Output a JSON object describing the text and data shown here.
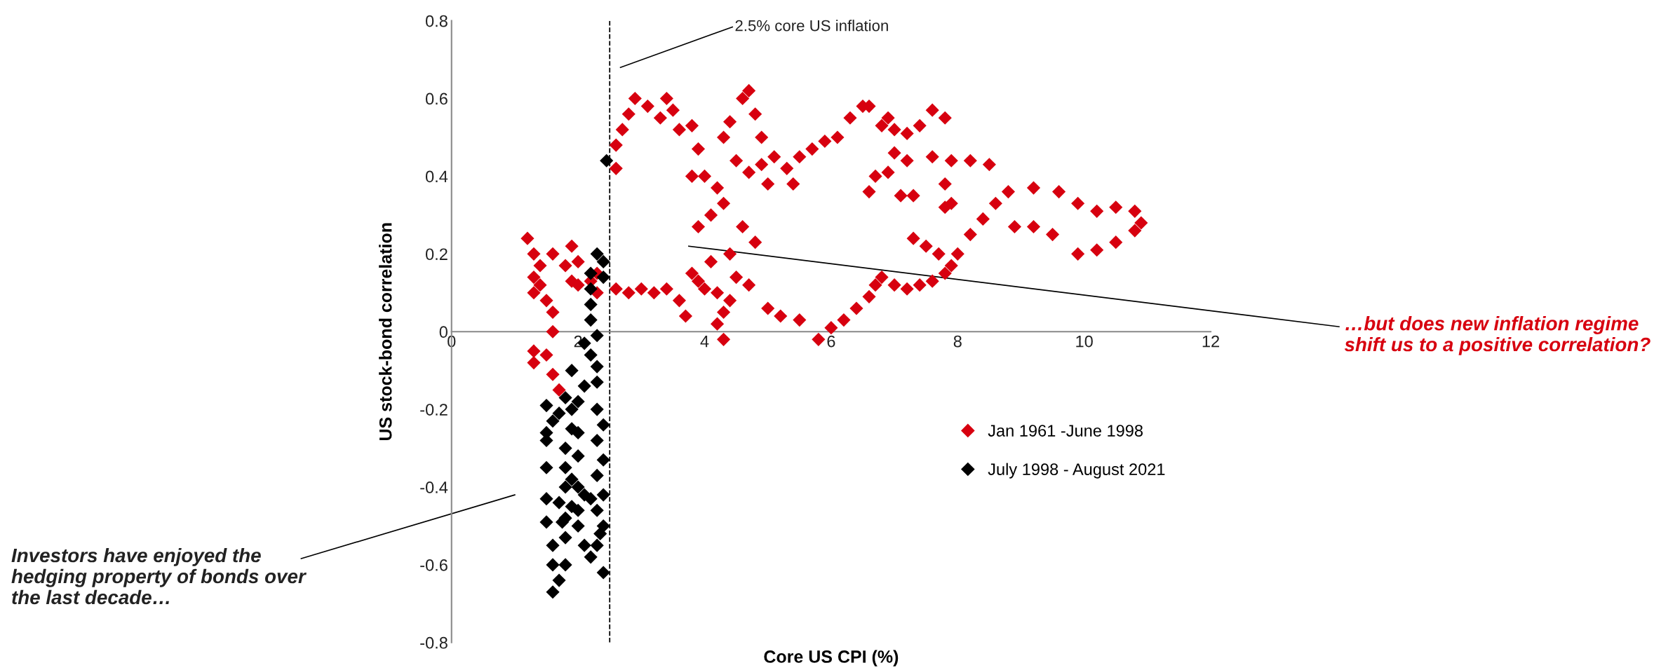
{
  "chart_data": {
    "type": "scatter",
    "xlabel": "Core US CPI (%)",
    "ylabel": "US stock-bond correlation",
    "xlim": [
      0,
      12
    ],
    "xticks": [
      0,
      2,
      4,
      6,
      8,
      10,
      12
    ],
    "ylim": [
      -0.8,
      0.8
    ],
    "yticks": [
      -0.8,
      -0.6,
      -0.4,
      -0.2,
      0,
      0.2,
      0.4,
      0.6,
      0.8
    ],
    "grid": false,
    "legend": "bottom right",
    "marker": "diamond",
    "ref_lines": [
      {
        "axis": "x",
        "value": 2.5,
        "color": "#000000",
        "line_style": "dashed"
      }
    ],
    "annotations": [
      "2.5% core US inflation",
      "…but does new inflation regime shift us to a positive correlation?",
      "Investors have enjoyed the hedging property of bonds over the last decade…"
    ],
    "series": [
      {
        "name": "Jan 1961 -June 1998",
        "color": "#d7000f",
        "x": [
          1.2,
          1.3,
          1.4,
          1.3,
          1.4,
          1.3,
          1.5,
          1.6,
          1.6,
          1.3,
          1.3,
          1.5,
          1.6,
          1.7,
          1.8,
          1.9,
          2.0,
          2.2,
          2.3,
          1.6,
          1.9,
          2.0,
          2.3,
          2.6,
          2.8,
          3.0,
          3.2,
          3.4,
          3.6,
          3.8,
          3.9,
          4.0,
          4.2,
          4.3,
          4.2,
          4.3,
          4.4,
          4.5,
          4.1,
          3.7,
          4.7,
          5.0,
          5.2,
          5.5,
          5.8,
          6.0,
          6.2,
          6.4,
          6.6,
          6.7,
          6.8,
          7.0,
          7.2,
          7.4,
          7.6,
          7.8,
          7.9,
          8.0,
          8.2,
          8.4,
          8.6,
          8.8,
          9.2,
          9.6,
          9.9,
          10.2,
          10.5,
          10.8,
          10.9,
          10.8,
          10.5,
          10.2,
          9.9,
          9.5,
          9.2,
          8.9,
          7.7,
          7.5,
          7.3,
          7.8,
          2.6,
          2.6,
          2.7,
          2.8,
          2.9,
          3.1,
          3.3,
          3.4,
          3.5,
          3.6,
          3.8,
          3.9,
          3.8,
          4.0,
          4.2,
          4.3,
          4.1,
          3.9,
          4.3,
          4.4,
          4.6,
          4.7,
          4.8,
          4.9,
          4.5,
          4.7,
          4.9,
          5.1,
          5.3,
          5.5,
          5.7,
          5.9,
          6.1,
          6.3,
          6.5,
          6.6,
          6.8,
          7.0,
          7.2,
          7.4,
          7.6,
          7.8,
          6.9,
          7.6,
          7.9,
          8.2,
          8.5,
          7.8,
          7.9,
          7.0,
          7.2,
          6.7,
          6.9,
          7.1,
          7.3,
          6.6,
          5.4,
          5.0,
          4.6,
          4.8,
          4.4
        ],
        "values": [
          0.24,
          0.2,
          0.17,
          0.14,
          0.12,
          0.1,
          0.08,
          0.05,
          0.0,
          -0.05,
          -0.08,
          -0.06,
          -0.11,
          -0.15,
          0.17,
          0.13,
          0.18,
          0.13,
          0.1,
          0.2,
          0.22,
          0.12,
          0.15,
          0.11,
          0.1,
          0.11,
          0.1,
          0.11,
          0.08,
          0.15,
          0.13,
          0.11,
          0.1,
          0.05,
          0.02,
          -0.02,
          0.08,
          0.14,
          0.18,
          0.04,
          0.12,
          0.06,
          0.04,
          0.03,
          -0.02,
          0.01,
          0.03,
          0.06,
          0.09,
          0.12,
          0.14,
          0.12,
          0.11,
          0.12,
          0.13,
          0.15,
          0.17,
          0.2,
          0.25,
          0.29,
          0.33,
          0.36,
          0.37,
          0.36,
          0.33,
          0.31,
          0.32,
          0.31,
          0.28,
          0.26,
          0.23,
          0.21,
          0.2,
          0.25,
          0.27,
          0.27,
          0.2,
          0.22,
          0.24,
          0.32,
          0.42,
          0.48,
          0.52,
          0.56,
          0.6,
          0.58,
          0.55,
          0.6,
          0.57,
          0.52,
          0.53,
          0.47,
          0.4,
          0.4,
          0.37,
          0.33,
          0.3,
          0.27,
          0.5,
          0.54,
          0.6,
          0.62,
          0.56,
          0.5,
          0.44,
          0.41,
          0.43,
          0.45,
          0.42,
          0.45,
          0.47,
          0.49,
          0.5,
          0.55,
          0.58,
          0.58,
          0.53,
          0.52,
          0.51,
          0.53,
          0.57,
          0.55,
          0.55,
          0.45,
          0.44,
          0.44,
          0.43,
          0.38,
          0.33,
          0.46,
          0.44,
          0.4,
          0.41,
          0.35,
          0.35,
          0.36,
          0.38,
          0.38,
          0.27,
          0.23,
          0.2
        ]
      },
      {
        "name": "July 1998 - August 2021",
        "color": "#000000",
        "x": [
          2.45,
          2.3,
          2.4,
          2.2,
          2.4,
          2.2,
          2.2,
          2.2,
          2.3,
          2.1,
          2.2,
          2.3,
          2.3,
          2.1,
          1.9,
          1.8,
          1.5,
          1.6,
          1.5,
          1.5,
          1.5,
          1.5,
          1.5,
          1.6,
          1.6,
          1.7,
          1.6,
          1.8,
          1.8,
          1.8,
          1.7,
          1.8,
          1.8,
          1.8,
          1.9,
          1.9,
          2.0,
          2.0,
          2.0,
          2.0,
          2.0,
          2.0,
          2.1,
          2.2,
          2.3,
          2.4,
          2.3,
          2.4,
          2.3,
          2.4,
          2.3,
          2.4,
          2.3,
          2.4,
          2.2,
          1.9,
          1.9,
          1.7,
          1.75,
          2.1,
          2.35
        ],
        "values": [
          0.44,
          0.2,
          0.18,
          0.15,
          0.14,
          0.11,
          0.07,
          0.03,
          -0.01,
          -0.03,
          -0.06,
          -0.09,
          -0.13,
          -0.14,
          -0.1,
          -0.17,
          -0.19,
          -0.23,
          -0.26,
          -0.28,
          -0.35,
          -0.43,
          -0.49,
          -0.55,
          -0.6,
          -0.64,
          -0.67,
          -0.6,
          -0.53,
          -0.48,
          -0.44,
          -0.4,
          -0.35,
          -0.3,
          -0.25,
          -0.2,
          -0.18,
          -0.26,
          -0.32,
          -0.4,
          -0.46,
          -0.5,
          -0.55,
          -0.58,
          -0.55,
          -0.5,
          -0.46,
          -0.42,
          -0.37,
          -0.33,
          -0.28,
          -0.24,
          -0.2,
          -0.62,
          -0.43,
          -0.45,
          -0.38,
          -0.21,
          -0.49,
          -0.42,
          -0.52
        ]
      }
    ]
  }
}
